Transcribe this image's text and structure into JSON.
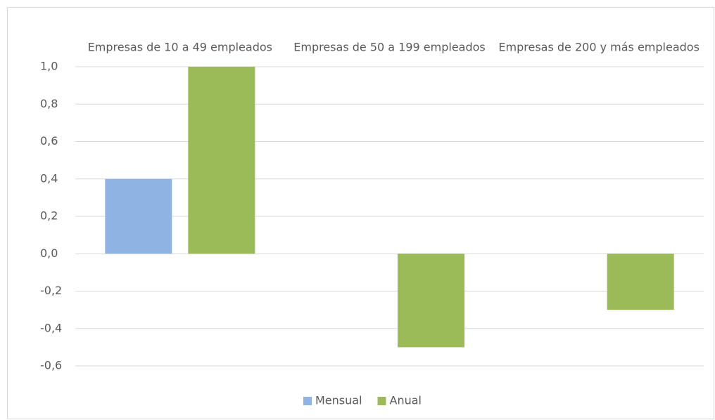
{
  "chart_data": {
    "type": "bar",
    "categories": [
      "Empresas de 10 a 49 empleados",
      "Empresas de 50 a 199 empleados",
      "Empresas de 200 y más empleados"
    ],
    "series": [
      {
        "name": "Mensual",
        "color": "#8fb4e3",
        "values": [
          0.4,
          0.0,
          0.0
        ]
      },
      {
        "name": "Anual",
        "color": "#9bbb59",
        "values": [
          1.0,
          -0.5,
          -0.3
        ]
      }
    ],
    "ylim": [
      -0.6,
      1.0
    ],
    "yticks": [
      {
        "value": -0.6,
        "label": "-0,6"
      },
      {
        "value": -0.4,
        "label": "-0,4"
      },
      {
        "value": -0.2,
        "label": "-0,2"
      },
      {
        "value": 0.0,
        "label": "0,0"
      },
      {
        "value": 0.2,
        "label": "0,2"
      },
      {
        "value": 0.4,
        "label": "0,4"
      },
      {
        "value": 0.6,
        "label": "0,6"
      },
      {
        "value": 0.8,
        "label": "0,8"
      },
      {
        "value": 1.0,
        "label": "1,0"
      }
    ],
    "grid": true,
    "legend": "bottom"
  }
}
